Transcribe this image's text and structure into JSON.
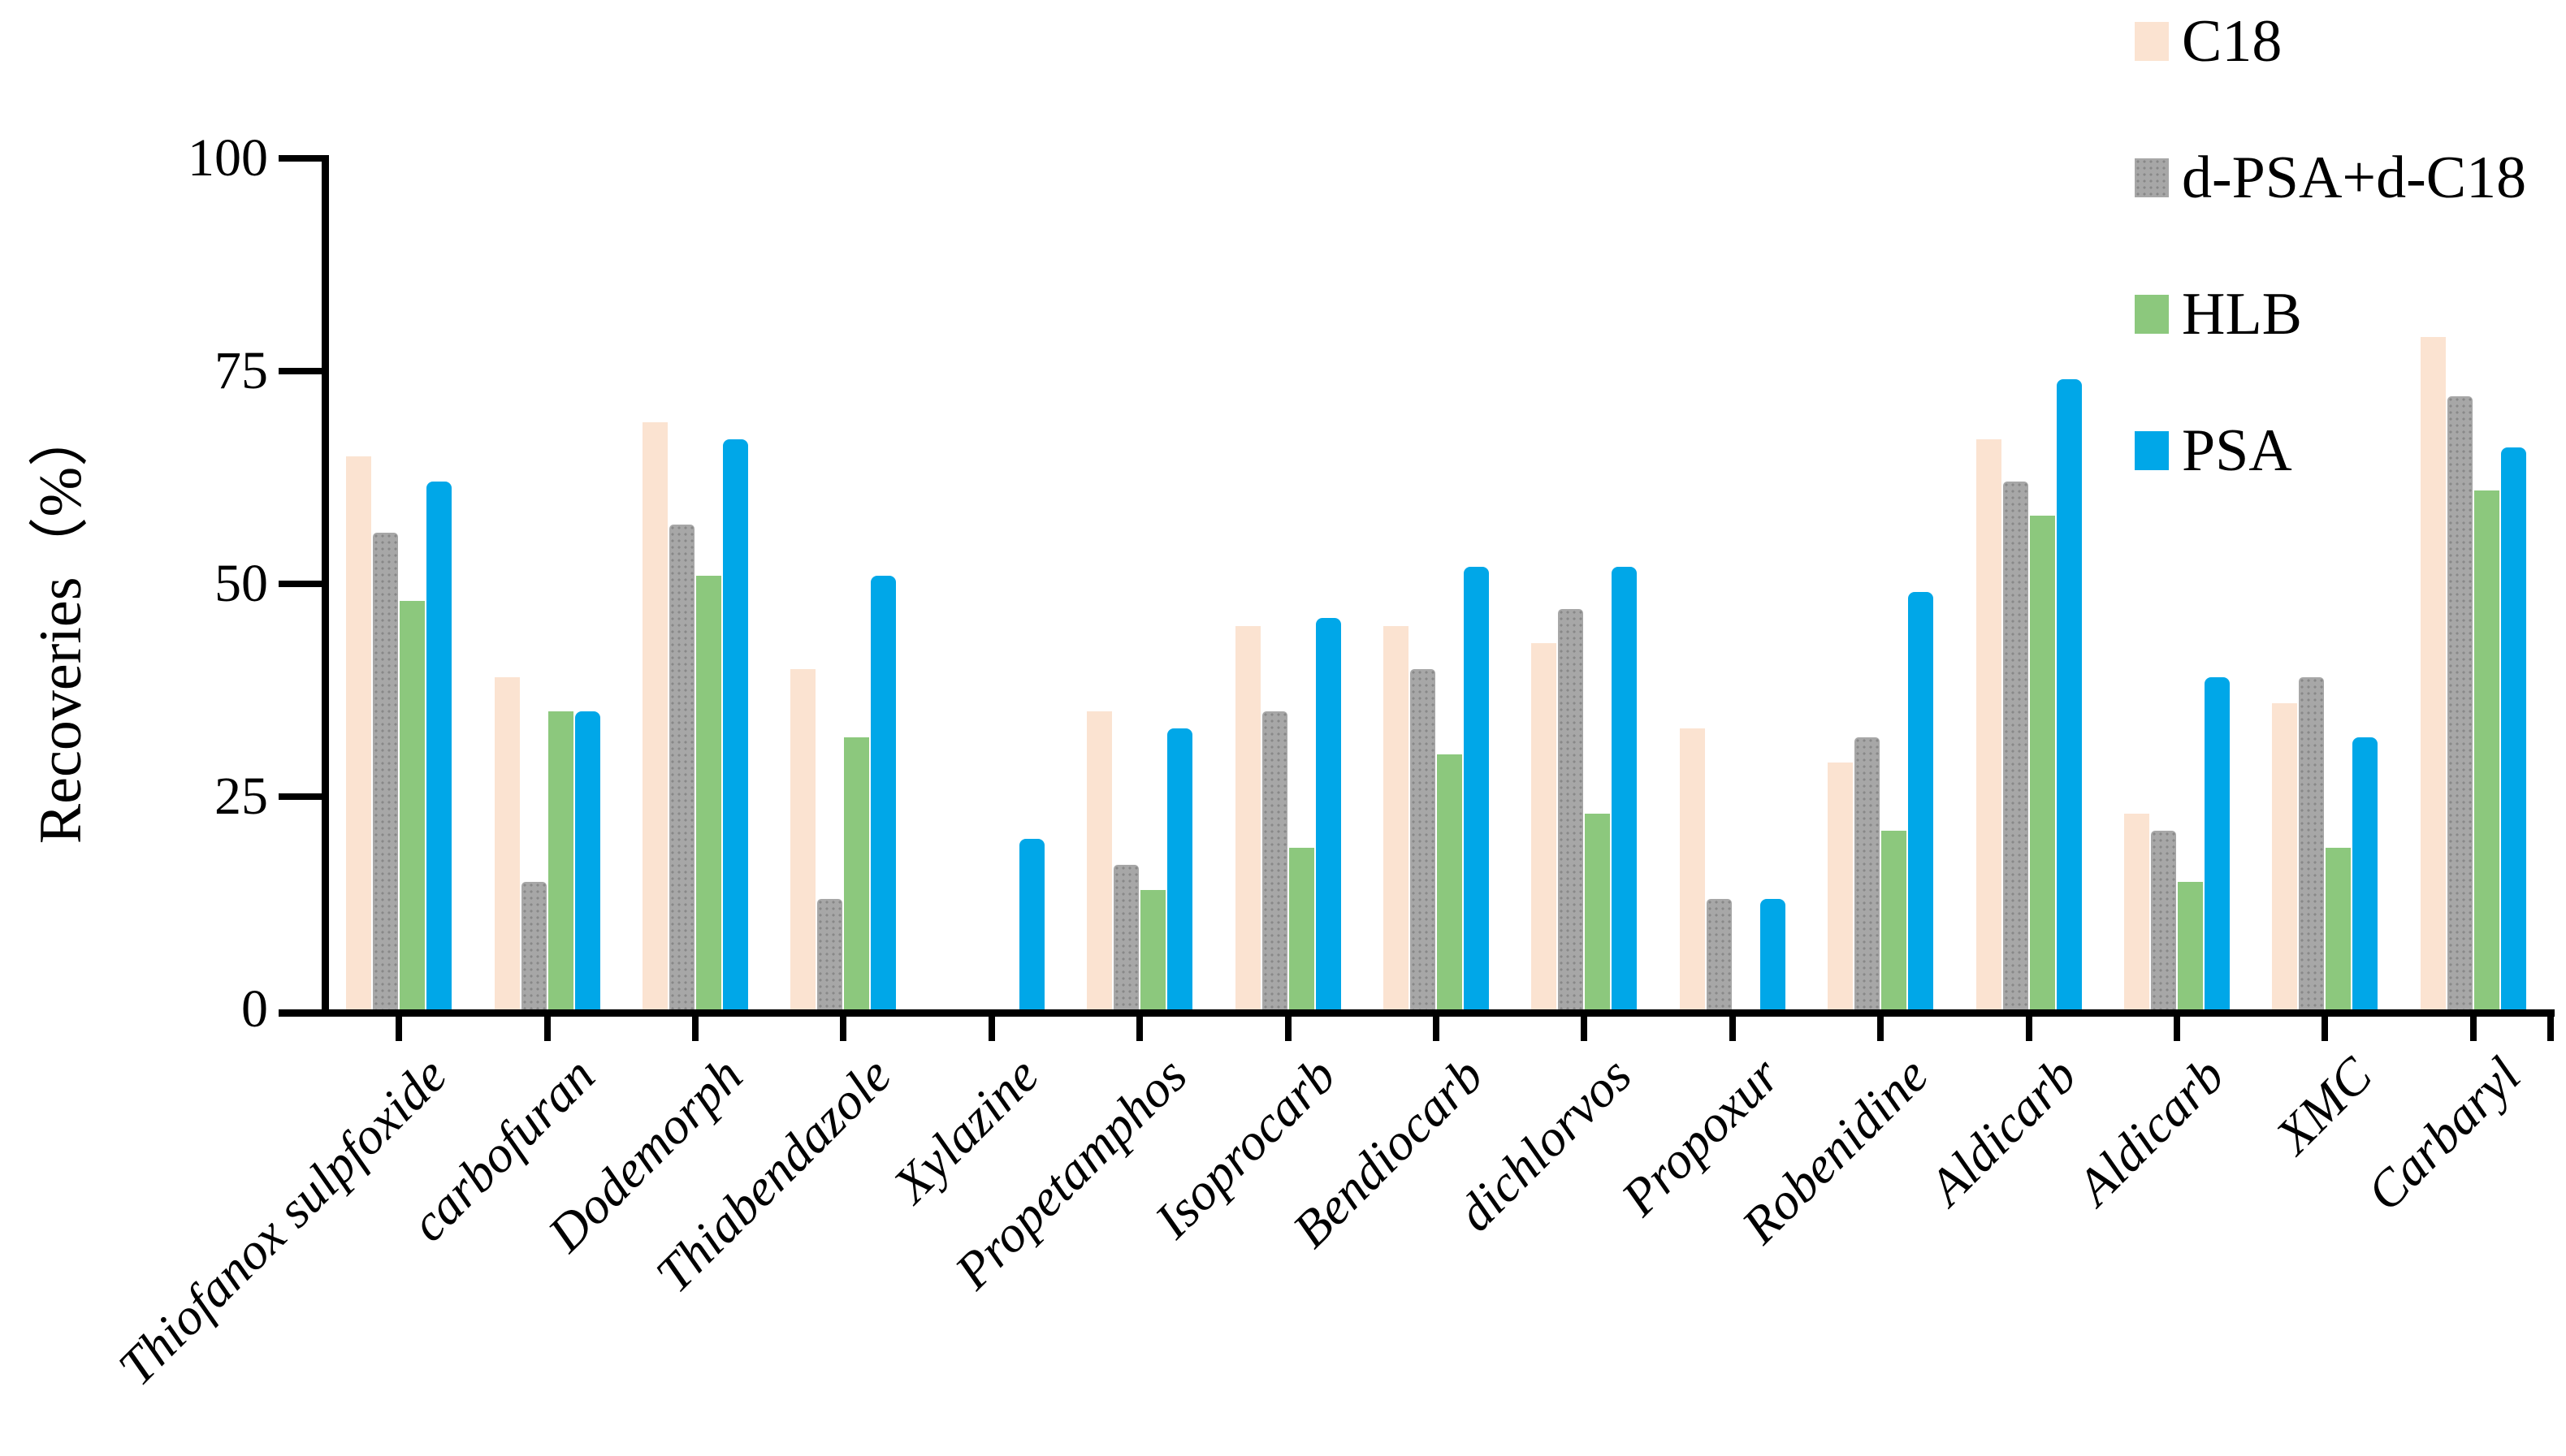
{
  "chart_data": {
    "type": "bar",
    "title": "",
    "xlabel": "",
    "ylabel": "Recoveries（%）",
    "ylim": [
      0,
      100
    ],
    "yticks": [
      0,
      25,
      50,
      75,
      100
    ],
    "grid": false,
    "legend_position": "top-right",
    "categories": [
      "Thiofanox sulpfoxide",
      "carbofuran",
      "Dodemorph",
      "Thiabendazole",
      "Xylazine",
      "Propetamphos",
      "Isoprocarb",
      "Bendiocarb",
      "dichlorvos",
      "Propoxur",
      "Robenidine",
      "Aldicarb",
      "Aldicarb",
      "XMC",
      "Carbaryl"
    ],
    "series": [
      {
        "name": "C18",
        "color": "#fbe3d1",
        "values": [
          65,
          39,
          69,
          40,
          0,
          35,
          45,
          45,
          43,
          33,
          29,
          67,
          23,
          36,
          79
        ]
      },
      {
        "name": "d-PSA+d-C18",
        "color": "#a7a7a7",
        "values": [
          56,
          15,
          57,
          13,
          0,
          17,
          35,
          40,
          47,
          13,
          32,
          62,
          21,
          39,
          72
        ]
      },
      {
        "name": "HLB",
        "color": "#8cc87d",
        "values": [
          48,
          35,
          51,
          32,
          0,
          14,
          19,
          30,
          23,
          0,
          21,
          58,
          15,
          19,
          61
        ]
      },
      {
        "name": "PSA",
        "color": "#00a7e8",
        "values": [
          62,
          35,
          67,
          51,
          20,
          33,
          46,
          52,
          52,
          13,
          49,
          74,
          39,
          32,
          66
        ]
      }
    ]
  },
  "colors": {
    "axis": "#000000",
    "background": "#ffffff"
  }
}
